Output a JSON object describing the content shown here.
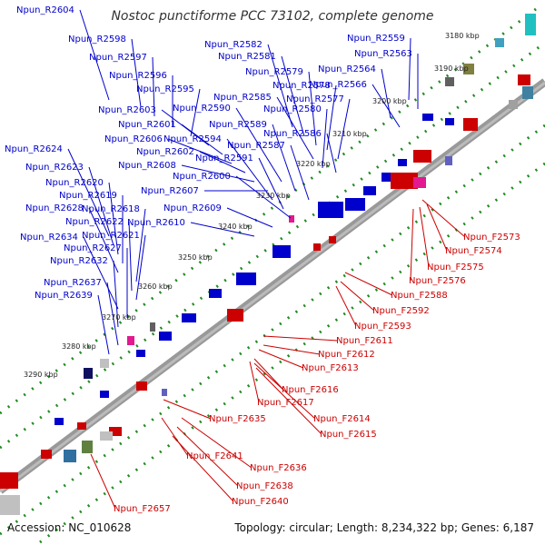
{
  "title": "Nostoc punctiforme PCC 73102, complete genome",
  "footer": {
    "accession": "Accession: NC_010628",
    "summary": "Topology: circular; Length: 8,234,322 bp; Genes: 6,187"
  },
  "colors": {
    "reverse": "#0000cc",
    "forward": "#cc0000",
    "backbone": "#888888",
    "ticks": "#228b22"
  },
  "scale_labels": [
    "3180 kbp",
    "3190 kbp",
    "3200 kbp",
    "3210 kbp",
    "3220 kbp",
    "3230 kbp",
    "3240 kbp",
    "3250 kbp",
    "3260 kbp",
    "3270 kbp",
    "3280 kbp",
    "3290 kbp"
  ],
  "reverse_genes": [
    "Npun_R2604",
    "Npun_R2598",
    "Npun_R2597",
    "Npun_R2596",
    "Npun_R2595",
    "Npun_R2603",
    "Npun_R2601",
    "Npun_R2606",
    "Npun_R2602",
    "Npun_R2608",
    "Npun_R2607",
    "Npun_R2582",
    "Npun_R2581",
    "Npun_R2579",
    "Npun_R2590",
    "Npun_R2589",
    "Npun_R2594",
    "Npun_R2591",
    "Npun_R2600",
    "Npun_R2609",
    "Npun_R2610",
    "Npun_R2585",
    "Npun_R2578",
    "Npun_R2580",
    "Npun_R2586",
    "Npun_R2587",
    "Npun_R2577",
    "Npun_R2559",
    "Npun_R2563",
    "Npun_R2564",
    "Npun_R2566",
    "Npun_R2624",
    "Npun_R2623",
    "Npun_R2620",
    "Npun_R2619",
    "Npun_R2628",
    "Npun_R2618",
    "Npun_R2622",
    "Npun_R2634",
    "Npun_R2621",
    "Npun_R2627",
    "Npun_R2632",
    "Npun_R2637",
    "Npun_R2639"
  ],
  "forward_genes": [
    "Npun_F2573",
    "Npun_F2574",
    "Npun_F2575",
    "Npun_F2576",
    "Npun_F2588",
    "Npun_F2592",
    "Npun_F2593",
    "Npun_F2611",
    "Npun_F2612",
    "Npun_F2613",
    "Npun_F2616",
    "Npun_F2617",
    "Npun_F2614",
    "Npun_F2615",
    "Npun_F2635",
    "Npun_F2641",
    "Npun_F2636",
    "Npun_F2638",
    "Npun_F2640",
    "Npun_F2657"
  ]
}
